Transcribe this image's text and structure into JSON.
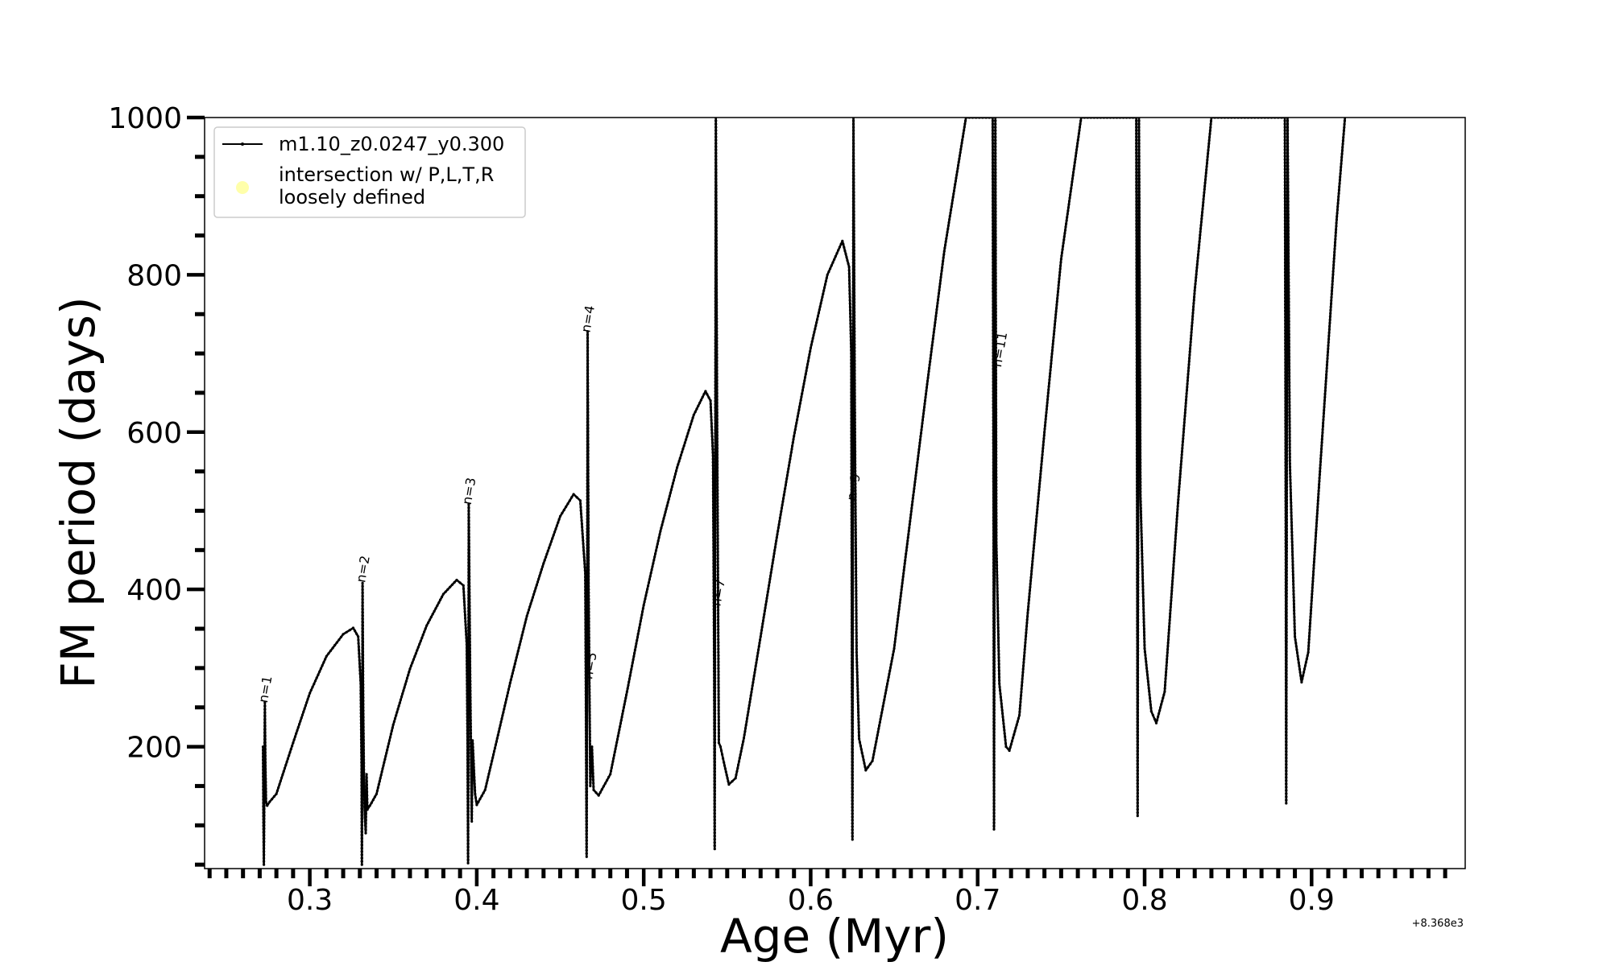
{
  "chart_data": {
    "type": "line",
    "title": "",
    "xlabel": "Age (Myr)",
    "ylabel": "FM period (days)",
    "x_offset_label": "+8.368e3",
    "xlim": [
      0.237,
      0.992
    ],
    "ylim": [
      45,
      1000
    ],
    "x_ticks": [
      0.3,
      0.4,
      0.5,
      0.6,
      0.7,
      0.8,
      0.9
    ],
    "x_tick_labels": [
      "0.3",
      "0.4",
      "0.5",
      "0.6",
      "0.7",
      "0.8",
      "0.9"
    ],
    "y_ticks": [
      200,
      400,
      600,
      800,
      1000
    ],
    "y_tick_labels": [
      "200",
      "400",
      "600",
      "800",
      "1000"
    ],
    "grid": false,
    "legend": {
      "placement": "top-left",
      "entries": [
        {
          "label": "m1.10_z0.0247_y0.300",
          "style": "line-dot",
          "color": "#000000"
        },
        {
          "label_lines": [
            "intersection w/ P,L,T,R",
            "loosely defined"
          ],
          "style": "marker",
          "color": "#ffffaa"
        }
      ]
    },
    "series": [
      {
        "name": "m1.10_z0.0247_y0.300",
        "color": "#000000",
        "points": [
          [
            0.272,
            200
          ],
          [
            0.2722,
            120
          ],
          [
            0.2725,
            50
          ],
          [
            0.2728,
            150
          ],
          [
            0.2731,
            256
          ],
          [
            0.2734,
            180
          ],
          [
            0.2738,
            130
          ],
          [
            0.2745,
            125
          ],
          [
            0.276,
            130
          ],
          [
            0.28,
            140
          ],
          [
            0.29,
            205
          ],
          [
            0.3,
            268
          ],
          [
            0.31,
            315
          ],
          [
            0.32,
            343
          ],
          [
            0.326,
            351
          ],
          [
            0.329,
            340
          ],
          [
            0.3305,
            280
          ],
          [
            0.331,
            180
          ],
          [
            0.3312,
            50
          ],
          [
            0.3314,
            150
          ],
          [
            0.3316,
            408
          ],
          [
            0.332,
            250
          ],
          [
            0.3325,
            150
          ],
          [
            0.333,
            110
          ],
          [
            0.3335,
            90
          ],
          [
            0.334,
            165
          ],
          [
            0.3345,
            120
          ],
          [
            0.336,
            125
          ],
          [
            0.34,
            140
          ],
          [
            0.35,
            228
          ],
          [
            0.36,
            299
          ],
          [
            0.37,
            354
          ],
          [
            0.38,
            394
          ],
          [
            0.388,
            412
          ],
          [
            0.392,
            405
          ],
          [
            0.394,
            330
          ],
          [
            0.3945,
            200
          ],
          [
            0.3948,
            52
          ],
          [
            0.395,
            200
          ],
          [
            0.3952,
            508
          ],
          [
            0.396,
            300
          ],
          [
            0.397,
            105
          ],
          [
            0.3975,
            208
          ],
          [
            0.399,
            140
          ],
          [
            0.4,
            126
          ],
          [
            0.405,
            145
          ],
          [
            0.41,
            190
          ],
          [
            0.42,
            281
          ],
          [
            0.43,
            366
          ],
          [
            0.44,
            433
          ],
          [
            0.45,
            493
          ],
          [
            0.458,
            521
          ],
          [
            0.462,
            513
          ],
          [
            0.465,
            420
          ],
          [
            0.4655,
            200
          ],
          [
            0.4658,
            60
          ],
          [
            0.4661,
            300
          ],
          [
            0.4664,
            728
          ],
          [
            0.467,
            400
          ],
          [
            0.468,
            150
          ],
          [
            0.469,
            200
          ],
          [
            0.47,
            145
          ],
          [
            0.473,
            138
          ],
          [
            0.48,
            165
          ],
          [
            0.49,
            270
          ],
          [
            0.5,
            380
          ],
          [
            0.51,
            474
          ],
          [
            0.52,
            555
          ],
          [
            0.53,
            622
          ],
          [
            0.537,
            652
          ],
          [
            0.54,
            640
          ],
          [
            0.5415,
            570
          ],
          [
            0.5422,
            300
          ],
          [
            0.5425,
            70
          ],
          [
            0.5428,
            500
          ],
          [
            0.5432,
            1000
          ],
          [
            0.544,
            600
          ],
          [
            0.545,
            205
          ],
          [
            0.546,
            200
          ],
          [
            0.548,
            180
          ],
          [
            0.551,
            152
          ],
          [
            0.555,
            160
          ],
          [
            0.56,
            211
          ],
          [
            0.57,
            340
          ],
          [
            0.58,
            470
          ],
          [
            0.59,
            595
          ],
          [
            0.6,
            707
          ],
          [
            0.61,
            800
          ],
          [
            0.619,
            843
          ],
          [
            0.623,
            810
          ],
          [
            0.6243,
            700
          ],
          [
            0.6247,
            300
          ],
          [
            0.625,
            82
          ],
          [
            0.6253,
            500
          ],
          [
            0.6256,
            1000
          ],
          [
            0.6265,
            600
          ],
          [
            0.6275,
            320
          ],
          [
            0.629,
            210
          ],
          [
            0.633,
            170
          ],
          [
            0.637,
            182
          ],
          [
            0.65,
            325
          ],
          [
            0.66,
            495
          ],
          [
            0.67,
            665
          ],
          [
            0.68,
            830
          ],
          [
            0.693,
            1000
          ],
          [
            0.709,
            1000
          ],
          [
            0.7095,
            500
          ],
          [
            0.7098,
            95
          ],
          [
            0.7102,
            600
          ],
          [
            0.7106,
            1000
          ],
          [
            0.7112,
            460
          ],
          [
            0.713,
            280
          ],
          [
            0.717,
            200
          ],
          [
            0.719,
            195
          ],
          [
            0.725,
            240
          ],
          [
            0.73,
            370
          ],
          [
            0.74,
            600
          ],
          [
            0.75,
            820
          ],
          [
            0.762,
            1000
          ],
          [
            0.795,
            1000
          ],
          [
            0.7955,
            500
          ],
          [
            0.7958,
            112
          ],
          [
            0.7962,
            600
          ],
          [
            0.7966,
            1000
          ],
          [
            0.7975,
            520
          ],
          [
            0.8,
            325
          ],
          [
            0.804,
            245
          ],
          [
            0.807,
            230
          ],
          [
            0.812,
            270
          ],
          [
            0.82,
            510
          ],
          [
            0.83,
            780
          ],
          [
            0.84,
            1000
          ],
          [
            0.884,
            1000
          ],
          [
            0.8845,
            500
          ],
          [
            0.8848,
            128
          ],
          [
            0.8852,
            600
          ],
          [
            0.8856,
            1000
          ],
          [
            0.887,
            560
          ],
          [
            0.89,
            340
          ],
          [
            0.894,
            282
          ],
          [
            0.898,
            320
          ],
          [
            0.905,
            550
          ],
          [
            0.915,
            870
          ],
          [
            0.92,
            1000
          ]
        ]
      }
    ],
    "annotations": [
      {
        "text": "n=1",
        "x": 0.2745,
        "y": 255
      },
      {
        "text": "n=2",
        "x": 0.333,
        "y": 408
      },
      {
        "text": "n=3",
        "x": 0.3965,
        "y": 507
      },
      {
        "text": "n=4",
        "x": 0.4677,
        "y": 726
      },
      {
        "text": "n=5",
        "x": 0.469,
        "y": 285
      },
      {
        "text": "n=7",
        "x": 0.5458,
        "y": 378
      },
      {
        "text": "n=9",
        "x": 0.6268,
        "y": 512
      },
      {
        "text": "n=11",
        "x": 0.714,
        "y": 682
      }
    ]
  }
}
